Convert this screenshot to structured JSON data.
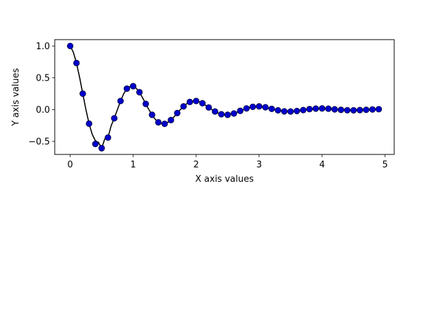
{
  "chart_data": {
    "type": "line",
    "title": "",
    "xlabel": "X axis values",
    "ylabel": "Y axis values",
    "xlim": [
      -0.245,
      5.145
    ],
    "ylim": [
      -0.705,
      1.1
    ],
    "xticks": [
      0,
      1,
      2,
      3,
      4,
      5
    ],
    "xtick_labels": [
      "0",
      "1",
      "2",
      "3",
      "4",
      "5"
    ],
    "yticks": [
      -0.5,
      0.0,
      0.5,
      1.0
    ],
    "ytick_labels": [
      "−0.5",
      "0.0",
      "0.5",
      "1.0"
    ],
    "grid": false,
    "legend": "none",
    "series": [
      {
        "kind": "line",
        "color": "#000000",
        "x": [
          0.0,
          0.05,
          0.1,
          0.15,
          0.2,
          0.25,
          0.3,
          0.35,
          0.4,
          0.45,
          0.5,
          0.55,
          0.6,
          0.65,
          0.7,
          0.75,
          0.8,
          0.85,
          0.9,
          0.95,
          1.0,
          1.05,
          1.1,
          1.15,
          1.2,
          1.25,
          1.3,
          1.35,
          1.4,
          1.45,
          1.5,
          1.55,
          1.6,
          1.65,
          1.7,
          1.75,
          1.8,
          1.85,
          1.9,
          1.95,
          2.0,
          2.05,
          2.1,
          2.15,
          2.2,
          2.25,
          2.3,
          2.35,
          2.4,
          2.45,
          2.5,
          2.55,
          2.6,
          2.65,
          2.7,
          2.75,
          2.8,
          2.85,
          2.9,
          2.95,
          3.0,
          3.05,
          3.1,
          3.15,
          3.2,
          3.25,
          3.3,
          3.35,
          3.4,
          3.45,
          3.5,
          3.55,
          3.6,
          3.65,
          3.7,
          3.75,
          3.8,
          3.85,
          3.9,
          3.95,
          4.0,
          4.05,
          4.1,
          4.15,
          4.2,
          4.25,
          4.3,
          4.35,
          4.4,
          4.45,
          4.5,
          4.55,
          4.6,
          4.65,
          4.7,
          4.75,
          4.8,
          4.85,
          4.9,
          4.95
        ],
        "y": [
          1.0,
          0.903,
          0.732,
          0.504,
          0.25,
          0.0,
          -0.221,
          -0.389,
          -0.49,
          -0.516,
          -0.607,
          -0.459,
          -0.44,
          -0.256,
          -0.136,
          0.0,
          0.135,
          0.249,
          0.329,
          0.364,
          0.368,
          0.334,
          0.273,
          0.185,
          0.09,
          0.0,
          -0.082,
          -0.152,
          -0.2,
          -0.22,
          -0.223,
          -0.202,
          -0.165,
          -0.112,
          -0.054,
          0.0,
          0.05,
          0.092,
          0.12,
          0.134,
          0.135,
          0.123,
          0.1,
          0.068,
          0.033,
          0.0,
          -0.03,
          -0.056,
          -0.073,
          -0.081,
          -0.082,
          -0.075,
          -0.061,
          -0.041,
          -0.02,
          0.0,
          0.018,
          0.034,
          0.044,
          0.049,
          0.05,
          0.045,
          0.037,
          0.025,
          0.012,
          0.0,
          -0.011,
          -0.021,
          -0.027,
          -0.03,
          -0.03,
          -0.027,
          -0.022,
          -0.015,
          -0.007,
          0.0,
          0.007,
          0.012,
          0.016,
          0.018,
          0.018,
          0.017,
          0.014,
          0.009,
          0.004,
          0.0,
          -0.004,
          -0.008,
          -0.01,
          -0.011,
          -0.011,
          -0.01,
          -0.008,
          -0.006,
          -0.003,
          0.0,
          0.002,
          0.005,
          0.006,
          0.007
        ]
      },
      {
        "kind": "scatter",
        "color": "#0000cc",
        "x": [
          0.0,
          0.1,
          0.2,
          0.3,
          0.4,
          0.5,
          0.6,
          0.7,
          0.8,
          0.9,
          1.0,
          1.1,
          1.2,
          1.3,
          1.4,
          1.5,
          1.6,
          1.7,
          1.8,
          1.9,
          2.0,
          2.1,
          2.2,
          2.3,
          2.4,
          2.5,
          2.6,
          2.7,
          2.8,
          2.9,
          3.0,
          3.1,
          3.2,
          3.3,
          3.4,
          3.5,
          3.6,
          3.7,
          3.8,
          3.9,
          4.0,
          4.1,
          4.2,
          4.3,
          4.4,
          4.5,
          4.6,
          4.7,
          4.8,
          4.9
        ],
        "y": [
          1.0,
          0.732,
          0.25,
          -0.221,
          -0.54,
          -0.607,
          -0.44,
          -0.136,
          0.135,
          0.329,
          0.368,
          0.273,
          0.09,
          -0.082,
          -0.2,
          -0.223,
          -0.165,
          -0.054,
          0.05,
          0.12,
          0.135,
          0.1,
          0.033,
          -0.03,
          -0.073,
          -0.082,
          -0.061,
          -0.02,
          0.018,
          0.044,
          0.05,
          0.037,
          0.012,
          -0.011,
          -0.027,
          -0.03,
          -0.022,
          -0.007,
          0.007,
          0.016,
          0.018,
          0.014,
          0.004,
          -0.004,
          -0.01,
          -0.011,
          -0.008,
          -0.003,
          0.002,
          0.006
        ]
      }
    ]
  }
}
